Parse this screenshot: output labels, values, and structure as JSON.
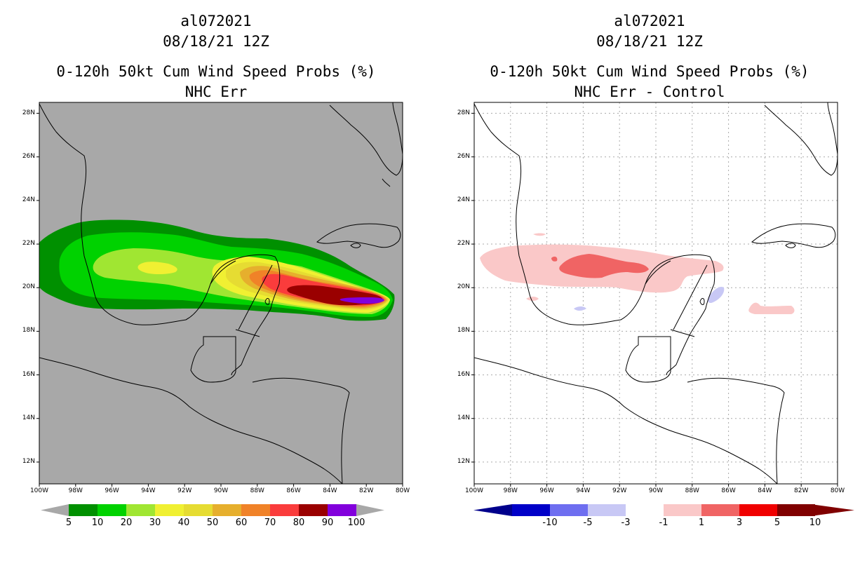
{
  "left_panel": {
    "storm_id": "al072021",
    "datetime": "08/18/21 12Z",
    "product": "0-120h 50kt Cum Wind Speed Probs (%)",
    "subtitle": "NHC Err"
  },
  "right_panel": {
    "storm_id": "al072021",
    "datetime": "08/18/21 12Z",
    "product": "0-120h 50kt Cum Wind Speed Probs (%)",
    "subtitle": "NHC Err - Control"
  },
  "axes": {
    "lat_labels": [
      "28N",
      "26N",
      "24N",
      "22N",
      "20N",
      "18N",
      "16N",
      "14N",
      "12N"
    ],
    "lon_labels": [
      "100W",
      "98W",
      "96W",
      "94W",
      "92W",
      "90W",
      "88W",
      "86W",
      "84W",
      "82W",
      "80W"
    ]
  },
  "colorbar_left": {
    "labels": [
      "5",
      "10",
      "20",
      "30",
      "40",
      "50",
      "60",
      "70",
      "80",
      "90",
      "100"
    ],
    "colors": [
      "#009000",
      "#00d200",
      "#a0e632",
      "#f0f032",
      "#e6dc32",
      "#e6af2d",
      "#f08228",
      "#fa3c3c",
      "#9a0000",
      "#8200dc"
    ]
  },
  "colorbar_right": {
    "labels": [
      "-10",
      "-5",
      "-3",
      "-1",
      "1",
      "3",
      "5",
      "10"
    ],
    "colors": [
      "#0000c8",
      "#6e6ef0",
      "#c8c8f5",
      "#ffffff",
      "#fac8c8",
      "#f06464",
      "#f00000",
      "#800000"
    ],
    "end_colors": [
      "#00008c",
      "#800000"
    ]
  },
  "map_colors": {
    "background_left": "#a8a8a8",
    "background_right": "#ffffff"
  }
}
